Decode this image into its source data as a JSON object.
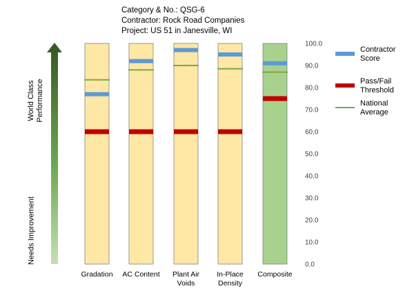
{
  "header": {
    "line1": "Category & No.: QSG-6",
    "line2": "Contractor: Rock Road Companies",
    "line3": "Project: US 51 in Janesville, WI"
  },
  "side_labels": {
    "top_line1": "World Class",
    "top_line2": "Performance",
    "bottom": "Needs Improvement"
  },
  "legend": {
    "contractor_score": {
      "line1": "Contractor",
      "line2": "Score"
    },
    "pass_fail": {
      "line1": "Pass/Fail",
      "line2": "Threshold"
    },
    "national_average": {
      "line1": "National",
      "line2": "Average"
    }
  },
  "colors": {
    "bar_fill": "#ffe7a6",
    "composite_fill": "#a9d18e",
    "contractor_score": "#5b9bd5",
    "pass_fail": "#c00000",
    "national_average": "#70ad47",
    "arrow_top": "#385723",
    "arrow_bottom": "#c5e0b4"
  },
  "chart_data": {
    "type": "bar",
    "categories": [
      "Gradation",
      "AC Content",
      "Plant Air\nVoids",
      "In-Place\nDensity",
      "Composite"
    ],
    "ylim": [
      0,
      100
    ],
    "yticks": [
      "0.0",
      "10.0",
      "20.0",
      "30.0",
      "40.0",
      "50.0",
      "60.0",
      "70.0",
      "80.0",
      "90.0",
      "100.0"
    ],
    "bar_max": [
      100,
      100,
      100,
      100,
      100
    ],
    "series": [
      {
        "name": "Contractor Score",
        "values": [
          77,
          92,
          97,
          95,
          91
        ]
      },
      {
        "name": "Pass/Fail Threshold",
        "values": [
          60,
          60,
          60,
          60,
          75
        ]
      },
      {
        "name": "National Average",
        "values": [
          83.5,
          88,
          90,
          88.5,
          87
        ]
      }
    ]
  }
}
